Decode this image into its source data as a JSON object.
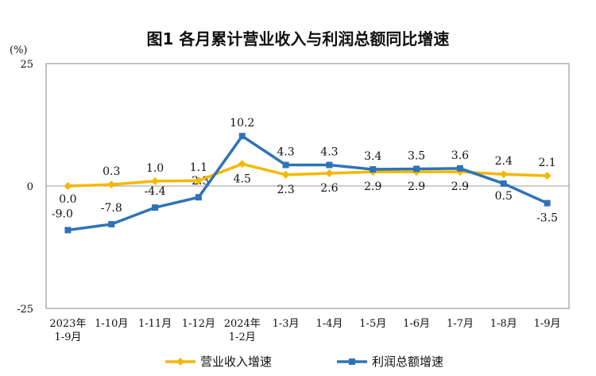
{
  "chart_data": {
    "type": "line",
    "title": "图1  各月累计营业收入与利润总额同比增速",
    "ylabel": "(%)",
    "ylim": [
      -25,
      25
    ],
    "yticks": [
      "25",
      "0",
      "-25"
    ],
    "categories": [
      [
        "2023年",
        "1-9月"
      ],
      [
        "1-10月"
      ],
      [
        "1-11月"
      ],
      [
        "1-12月"
      ],
      [
        "2024年",
        "1-2月"
      ],
      [
        "1-3月"
      ],
      [
        "1-4月"
      ],
      [
        "1-5月"
      ],
      [
        "1-6月"
      ],
      [
        "1-7月"
      ],
      [
        "1-8月"
      ],
      [
        "1-9月"
      ]
    ],
    "series": [
      {
        "name": "营业收入增速",
        "color": "#F5B800",
        "marker": "diamond",
        "values": [
          0.0,
          0.3,
          1.0,
          1.1,
          4.5,
          2.3,
          2.6,
          2.9,
          2.9,
          2.9,
          2.4,
          2.1
        ],
        "labels": [
          "0.0",
          "0.3",
          "1.0",
          "1.1",
          "4.5",
          "2.3",
          "2.6",
          "2.9",
          "2.9",
          "2.9",
          "2.4",
          "2.1"
        ]
      },
      {
        "name": "利润总额增速",
        "color": "#2E73B8",
        "marker": "square",
        "values": [
          -9.0,
          -7.8,
          -4.4,
          -2.3,
          10.2,
          4.3,
          4.3,
          3.4,
          3.5,
          3.6,
          0.5,
          -3.5
        ],
        "labels": [
          "-9.0",
          "-7.8",
          "-4.4",
          "-2.3",
          "10.2",
          "4.3",
          "4.3",
          "3.4",
          "3.5",
          "3.6",
          "0.5",
          "-3.5"
        ]
      }
    ],
    "legend_position": "bottom",
    "grid": false
  }
}
